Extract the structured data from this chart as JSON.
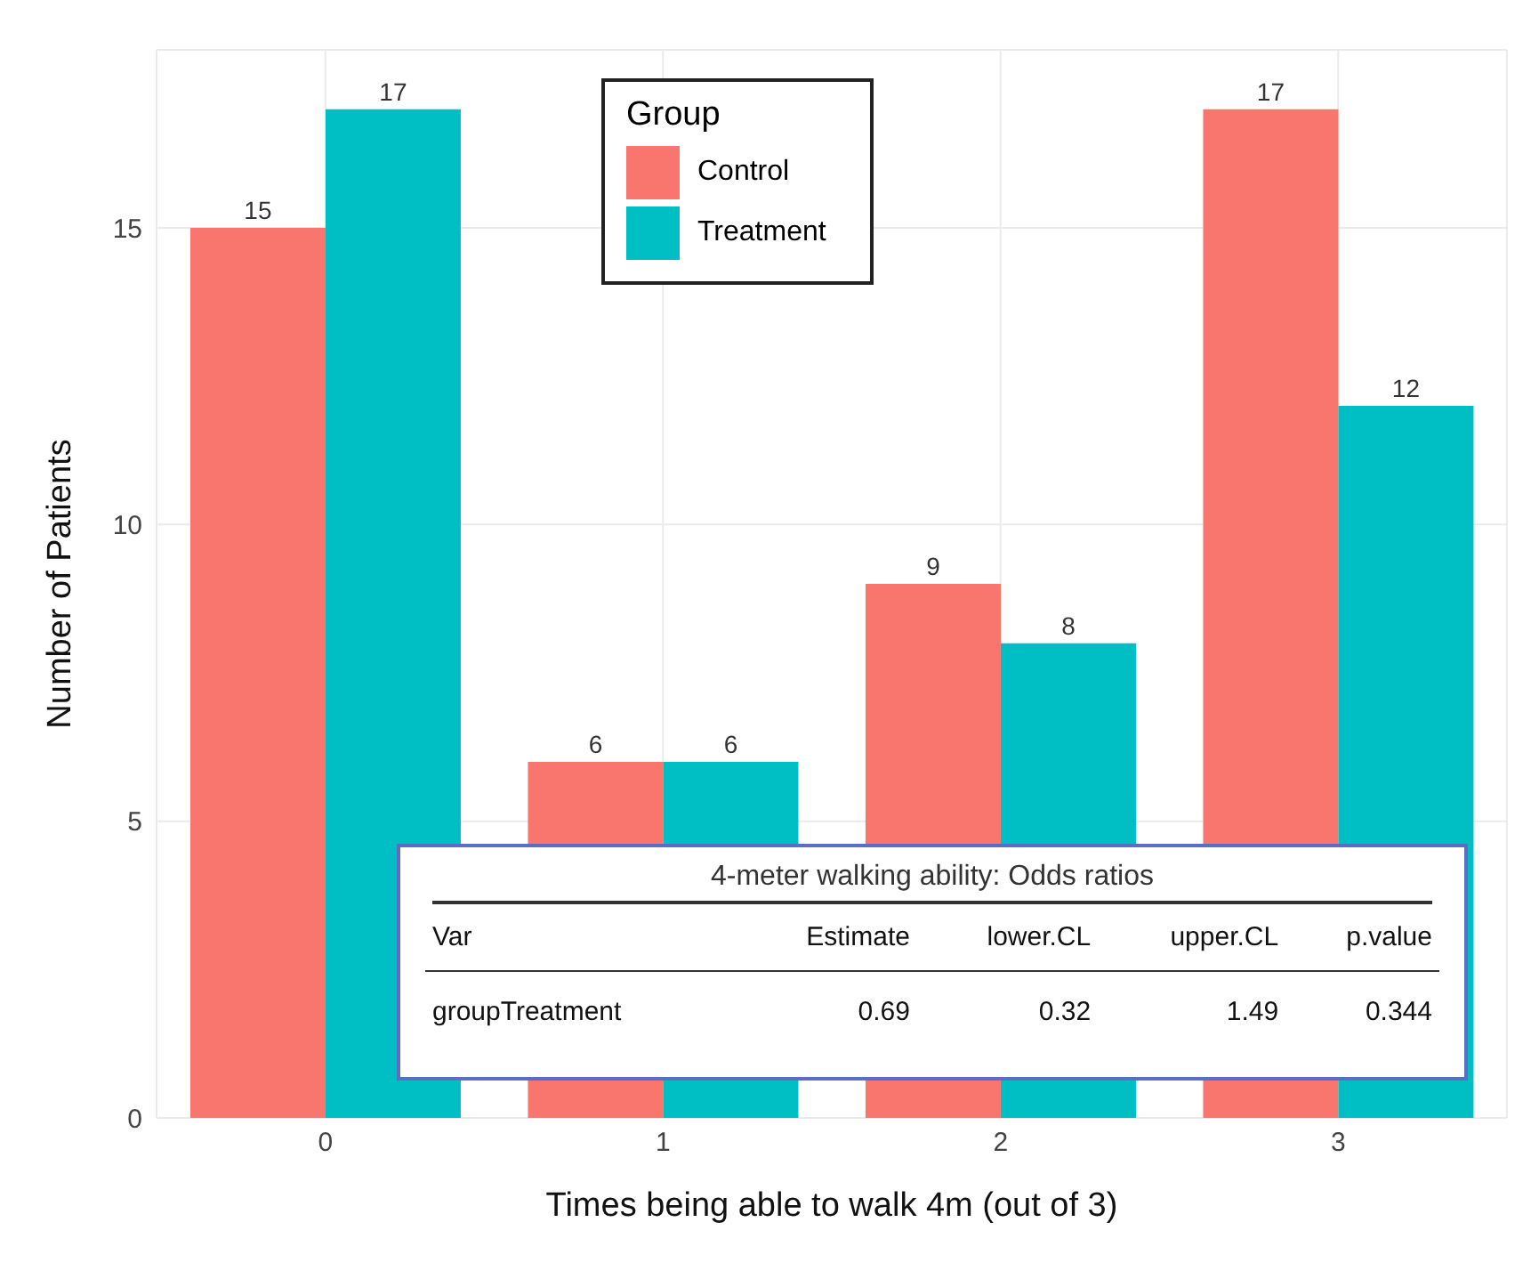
{
  "chart_data": {
    "type": "bar",
    "xlabel": "Times being able to walk 4m (out of 3)",
    "ylabel": "Number of Patients",
    "legend_title": "Group",
    "categories": [
      "0",
      "1",
      "2",
      "3"
    ],
    "series": [
      {
        "name": "Control",
        "color": "#f8766d",
        "values": [
          15,
          6,
          9,
          17
        ]
      },
      {
        "name": "Treatment",
        "color": "#00bfc4",
        "values": [
          17,
          6,
          8,
          12
        ]
      }
    ],
    "ylim": [
      0,
      18
    ],
    "yticks": [
      0,
      5,
      10,
      15
    ],
    "grid": true,
    "legend": "top",
    "data_labels": true,
    "annotations": [
      "4-meter walking ability: Odds ratios",
      "Var",
      "Estimate",
      "lower.CL",
      "upper.CL",
      "p.value",
      "groupTreatment",
      "0.69",
      "0.32",
      "1.49",
      "0.344"
    ]
  }
}
